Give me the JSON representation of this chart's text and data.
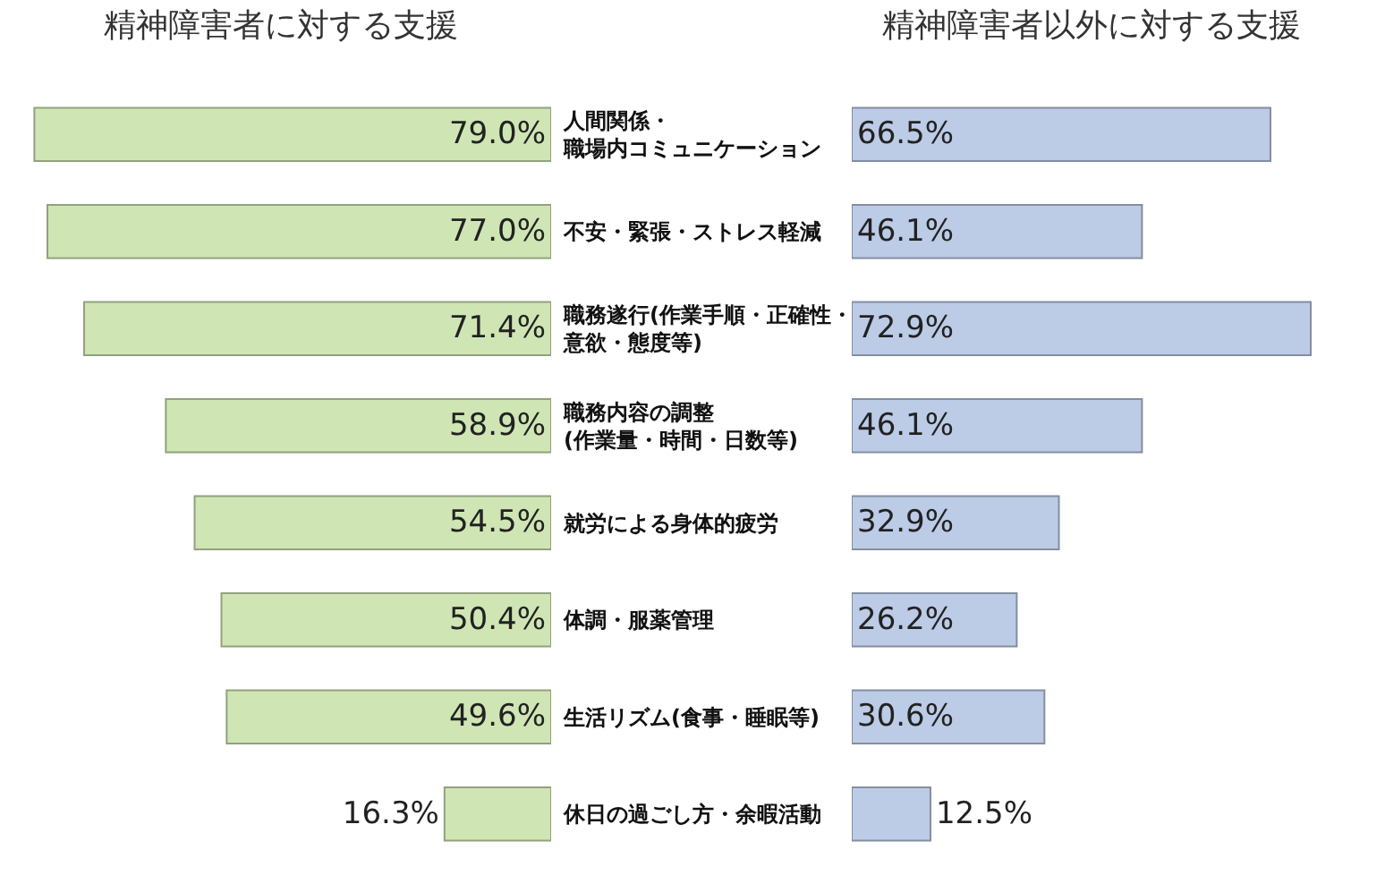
{
  "chart_data": [
    {
      "type": "bar",
      "orientation": "horizontal",
      "title": "精神障害者に対する支援",
      "categories": [
        "人間関係・職場内コミュニケーション",
        "不安・緊張・ストレス軽減",
        "職務遂行(作業手順・正確性・意欲・態度等)",
        "職務内容の調整(作業量・時間・日数等)",
        "就労による身体的疲労",
        "体調・服薬管理",
        "生活リズム(食事・睡眠等)",
        "休日の過ごし方・余暇活動"
      ],
      "values": [
        79.0,
        77.0,
        71.4,
        58.9,
        54.5,
        50.4,
        49.6,
        16.3
      ],
      "value_labels": [
        "79.0%",
        "77.0%",
        "71.4%",
        "58.9%",
        "54.5%",
        "50.4%",
        "49.6%",
        "16.3%"
      ],
      "color": "#cfe6b4",
      "tick_labels": "y"
    },
    {
      "type": "bar",
      "orientation": "horizontal",
      "title": "精神障害者以外に対する支援",
      "categories": [
        null,
        null,
        null,
        null,
        null,
        null,
        null,
        null
      ],
      "values": [
        66.5,
        46.1,
        72.9,
        46.1,
        32.9,
        26.2,
        30.6,
        12.5
      ],
      "value_labels": [
        "66.5%",
        "46.1%",
        "72.9%",
        "46.1%",
        "32.9%",
        "26.2%",
        "30.6%",
        "12.5%"
      ],
      "color": "#bccbe6",
      "tick_labels": false
    }
  ]
}
